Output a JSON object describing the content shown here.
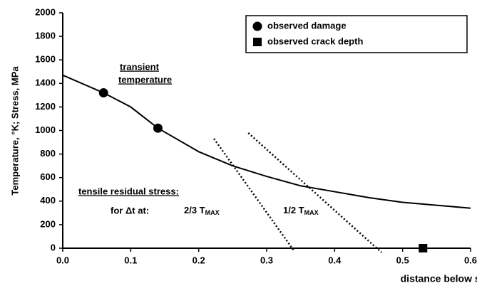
{
  "chart_data": {
    "type": "line",
    "xlabel": "distance below surface,  mm",
    "ylabel": "Temperature,  °K;  Stress,  MPa",
    "xlim": [
      0,
      0.6
    ],
    "xticks": [
      {
        "value": 0,
        "label": "0.0"
      },
      0.1,
      0.2,
      0.3,
      0.4,
      0.5,
      0.6
    ],
    "ylim": [
      0,
      2000
    ],
    "yticks": [
      0,
      200,
      400,
      600,
      800,
      1000,
      1200,
      1400,
      1600,
      1800,
      2000
    ],
    "legend": "top-right",
    "annotations": [
      "transient",
      "temperature",
      "tensile residual stress:",
      "for Δt at:"
    ],
    "subscript_labels": [
      {
        "text": "2/3 T",
        "sub": "MAX"
      },
      {
        "text": "1/2 T",
        "sub": "MAX"
      }
    ],
    "series": [
      {
        "type": "line",
        "color": "#000000",
        "style": "solid",
        "x": [
          0,
          0.06,
          0.1,
          0.14,
          0.2,
          0.25,
          0.3,
          0.35,
          0.4,
          0.45,
          0.5,
          0.55,
          0.6
        ],
        "values": [
          1470,
          1320,
          1200,
          1020,
          820,
          700,
          610,
          530,
          480,
          430,
          390,
          365,
          340
        ]
      },
      {
        "type": "line",
        "color": "#000000",
        "style": "dotted",
        "x": [
          0.2225,
          0.34
        ],
        "values": [
          930,
          -20
        ]
      },
      {
        "type": "line",
        "color": "#000000",
        "style": "dotted",
        "x": [
          0.273,
          0.469
        ],
        "values": [
          979,
          -36
        ]
      },
      {
        "name": "observed damage",
        "type": "scatter",
        "marker": "circle",
        "color": "#000000",
        "x": [
          0.06,
          0.14
        ],
        "values": [
          1320,
          1020
        ]
      },
      {
        "name": "observed crack depth",
        "type": "scatter",
        "marker": "square",
        "color": "#000000",
        "x": [
          0.53
        ],
        "values": [
          0
        ]
      }
    ]
  }
}
